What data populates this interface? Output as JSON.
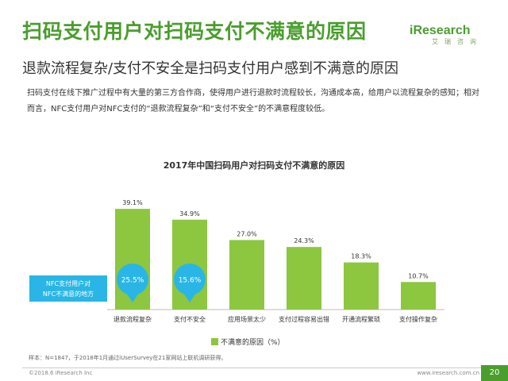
{
  "header": {
    "title": "扫码支付用户对扫码支付不满意的原因",
    "subtitle": "退款流程复杂/支付不安全是扫码支付用户感到不满意的原因",
    "description": "扫码支付在线下推广过程中有大量的第三方合作商，使得用户进行退款时流程较长，沟通成本高，给用户以流程复杂的感知；相对而言，NFC支付用户对NFC支付的“退款流程复杂”和“支付不安全”的不满意程度较低。"
  },
  "logo": {
    "name": "iResearch",
    "sub": "艾瑞咨询"
  },
  "chart_data": {
    "type": "bar",
    "title": "2017年中国扫码用户对扫码支付不满意的原因",
    "categories": [
      "退款流程复杂",
      "支付不安全",
      "应用场景太少",
      "支付过程容易出错",
      "开通流程繁琐",
      "支付操作复杂"
    ],
    "series": [
      {
        "name": "不满意的原因（%）",
        "values": [
          39.1,
          34.9,
          27.0,
          24.3,
          18.3,
          10.7
        ],
        "labels": [
          "39.1%",
          "34.9%",
          "27.0%",
          "24.3%",
          "18.3%",
          "10.7%"
        ]
      }
    ],
    "nfc_values": [
      25.5,
      15.6
    ],
    "nfc_labels": [
      "25.5%",
      "15.6%"
    ],
    "nfc_label": "NFC支付用户对NFC不满意的地方",
    "ylim": [
      0,
      45
    ],
    "colors": {
      "bar": "#8dc63f",
      "bubble": "#29b6e6",
      "callout": "#29b6e6"
    }
  },
  "footer": {
    "source": "样本：N=1847，于2018年1月通过iUserSurvey在21家网站上联机调研获得。",
    "copyright": "©2018.6 iResearch Inc",
    "website": "www.iresearch.com.cn",
    "page": "20"
  }
}
